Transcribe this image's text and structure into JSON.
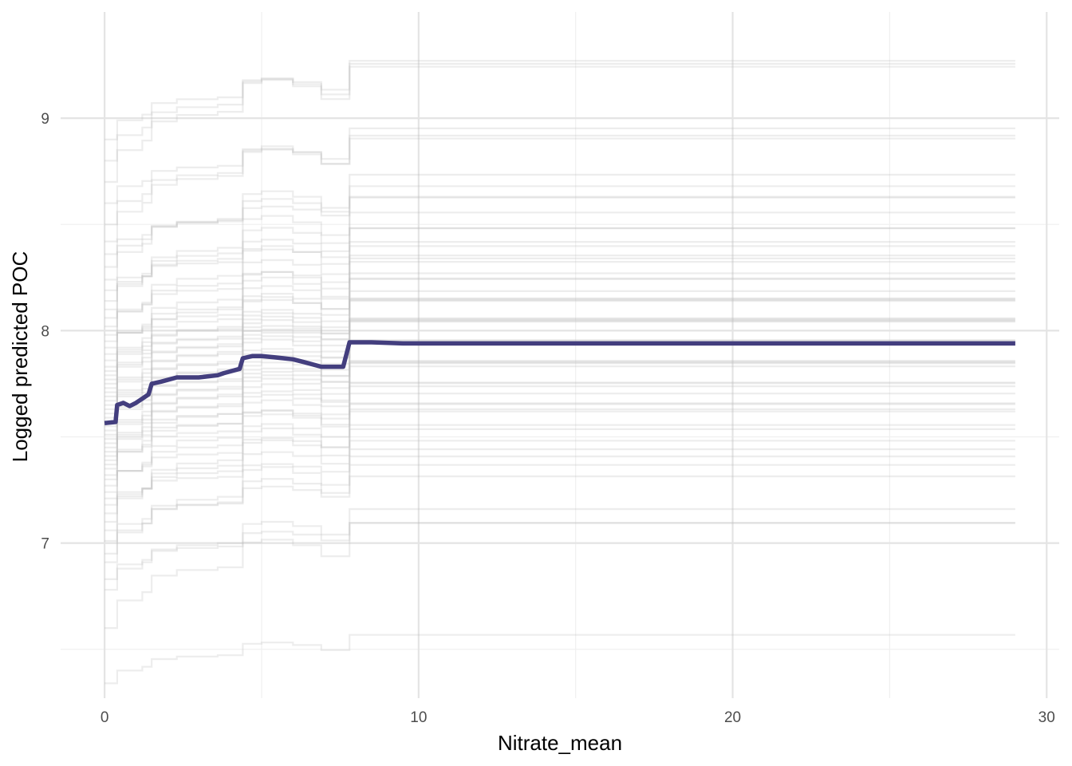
{
  "chart_data": {
    "type": "line",
    "title": "",
    "xlabel": "Nitrate_mean",
    "ylabel": "Logged predicted POC",
    "xlim": [
      -1.4,
      30.4
    ],
    "ylim": [
      6.27,
      9.5
    ],
    "x_ticks": [
      {
        "value": 0,
        "label": "0"
      },
      {
        "value": 10,
        "label": "10"
      },
      {
        "value": 20,
        "label": "20"
      },
      {
        "value": 30,
        "label": "30"
      }
    ],
    "y_ticks": [
      {
        "value": 7,
        "label": "7"
      },
      {
        "value": 8,
        "label": "8"
      },
      {
        "value": 9,
        "label": "9"
      }
    ],
    "x_minor_ticks": [
      5,
      15,
      25
    ],
    "y_minor_ticks": [
      6.5,
      7.5,
      8.5
    ],
    "grid": true,
    "colors": {
      "mean_line": "#433E7E",
      "individual_lines": "#BDBDBD",
      "grid_major": "#E4E4E4",
      "grid_minor": "#F0F0F0"
    },
    "individual_series_shape": [
      [
        0,
        0
      ],
      [
        0.4,
        0.1
      ],
      [
        1.2,
        0.13
      ],
      [
        1.5,
        0.19
      ],
      [
        2.3,
        0.21
      ],
      [
        3.6,
        0.22
      ],
      [
        4.4,
        0.31
      ],
      [
        5.0,
        0.32
      ],
      [
        6.0,
        0.3
      ],
      [
        6.9,
        0.26
      ],
      [
        7.6,
        0.26
      ],
      [
        7.8,
        0.38
      ],
      [
        29.0,
        0.38
      ]
    ],
    "individual_series_start_values": [
      6.34,
      6.6,
      6.78,
      6.83,
      6.91,
      6.95,
      7.01,
      7.06,
      7.1,
      7.14,
      7.18,
      7.21,
      7.24,
      7.27,
      7.3,
      7.32,
      7.35,
      7.37,
      7.39,
      7.41,
      7.43,
      7.45,
      7.47,
      7.49,
      7.51,
      7.53,
      7.55,
      7.57,
      7.59,
      7.61,
      7.63,
      7.65,
      7.67,
      7.69,
      7.71,
      7.73,
      7.75,
      7.77,
      7.79,
      7.81,
      7.83,
      7.86,
      7.89,
      7.92,
      7.95,
      7.98,
      8.02,
      8.06,
      8.1,
      8.14,
      8.19,
      8.24,
      8.3,
      8.36,
      8.42,
      8.5,
      8.6,
      8.7,
      8.8,
      8.9
    ],
    "series": [
      {
        "x": [
          0,
          0.35,
          0.4,
          0.6,
          0.8,
          1.0,
          1.2,
          1.4,
          1.5,
          1.8,
          2.3,
          3.0,
          3.6,
          3.8,
          4.3,
          4.4,
          4.7,
          5.0,
          5.4,
          5.7,
          6.0,
          6.4,
          6.9,
          7.6,
          7.8,
          8.5,
          9.5,
          29.0
        ],
        "y": [
          7.565,
          7.57,
          7.65,
          7.66,
          7.645,
          7.66,
          7.68,
          7.7,
          7.75,
          7.76,
          7.78,
          7.78,
          7.79,
          7.8,
          7.82,
          7.87,
          7.88,
          7.88,
          7.875,
          7.87,
          7.865,
          7.85,
          7.83,
          7.83,
          7.945,
          7.945,
          7.94,
          7.94
        ]
      }
    ]
  }
}
